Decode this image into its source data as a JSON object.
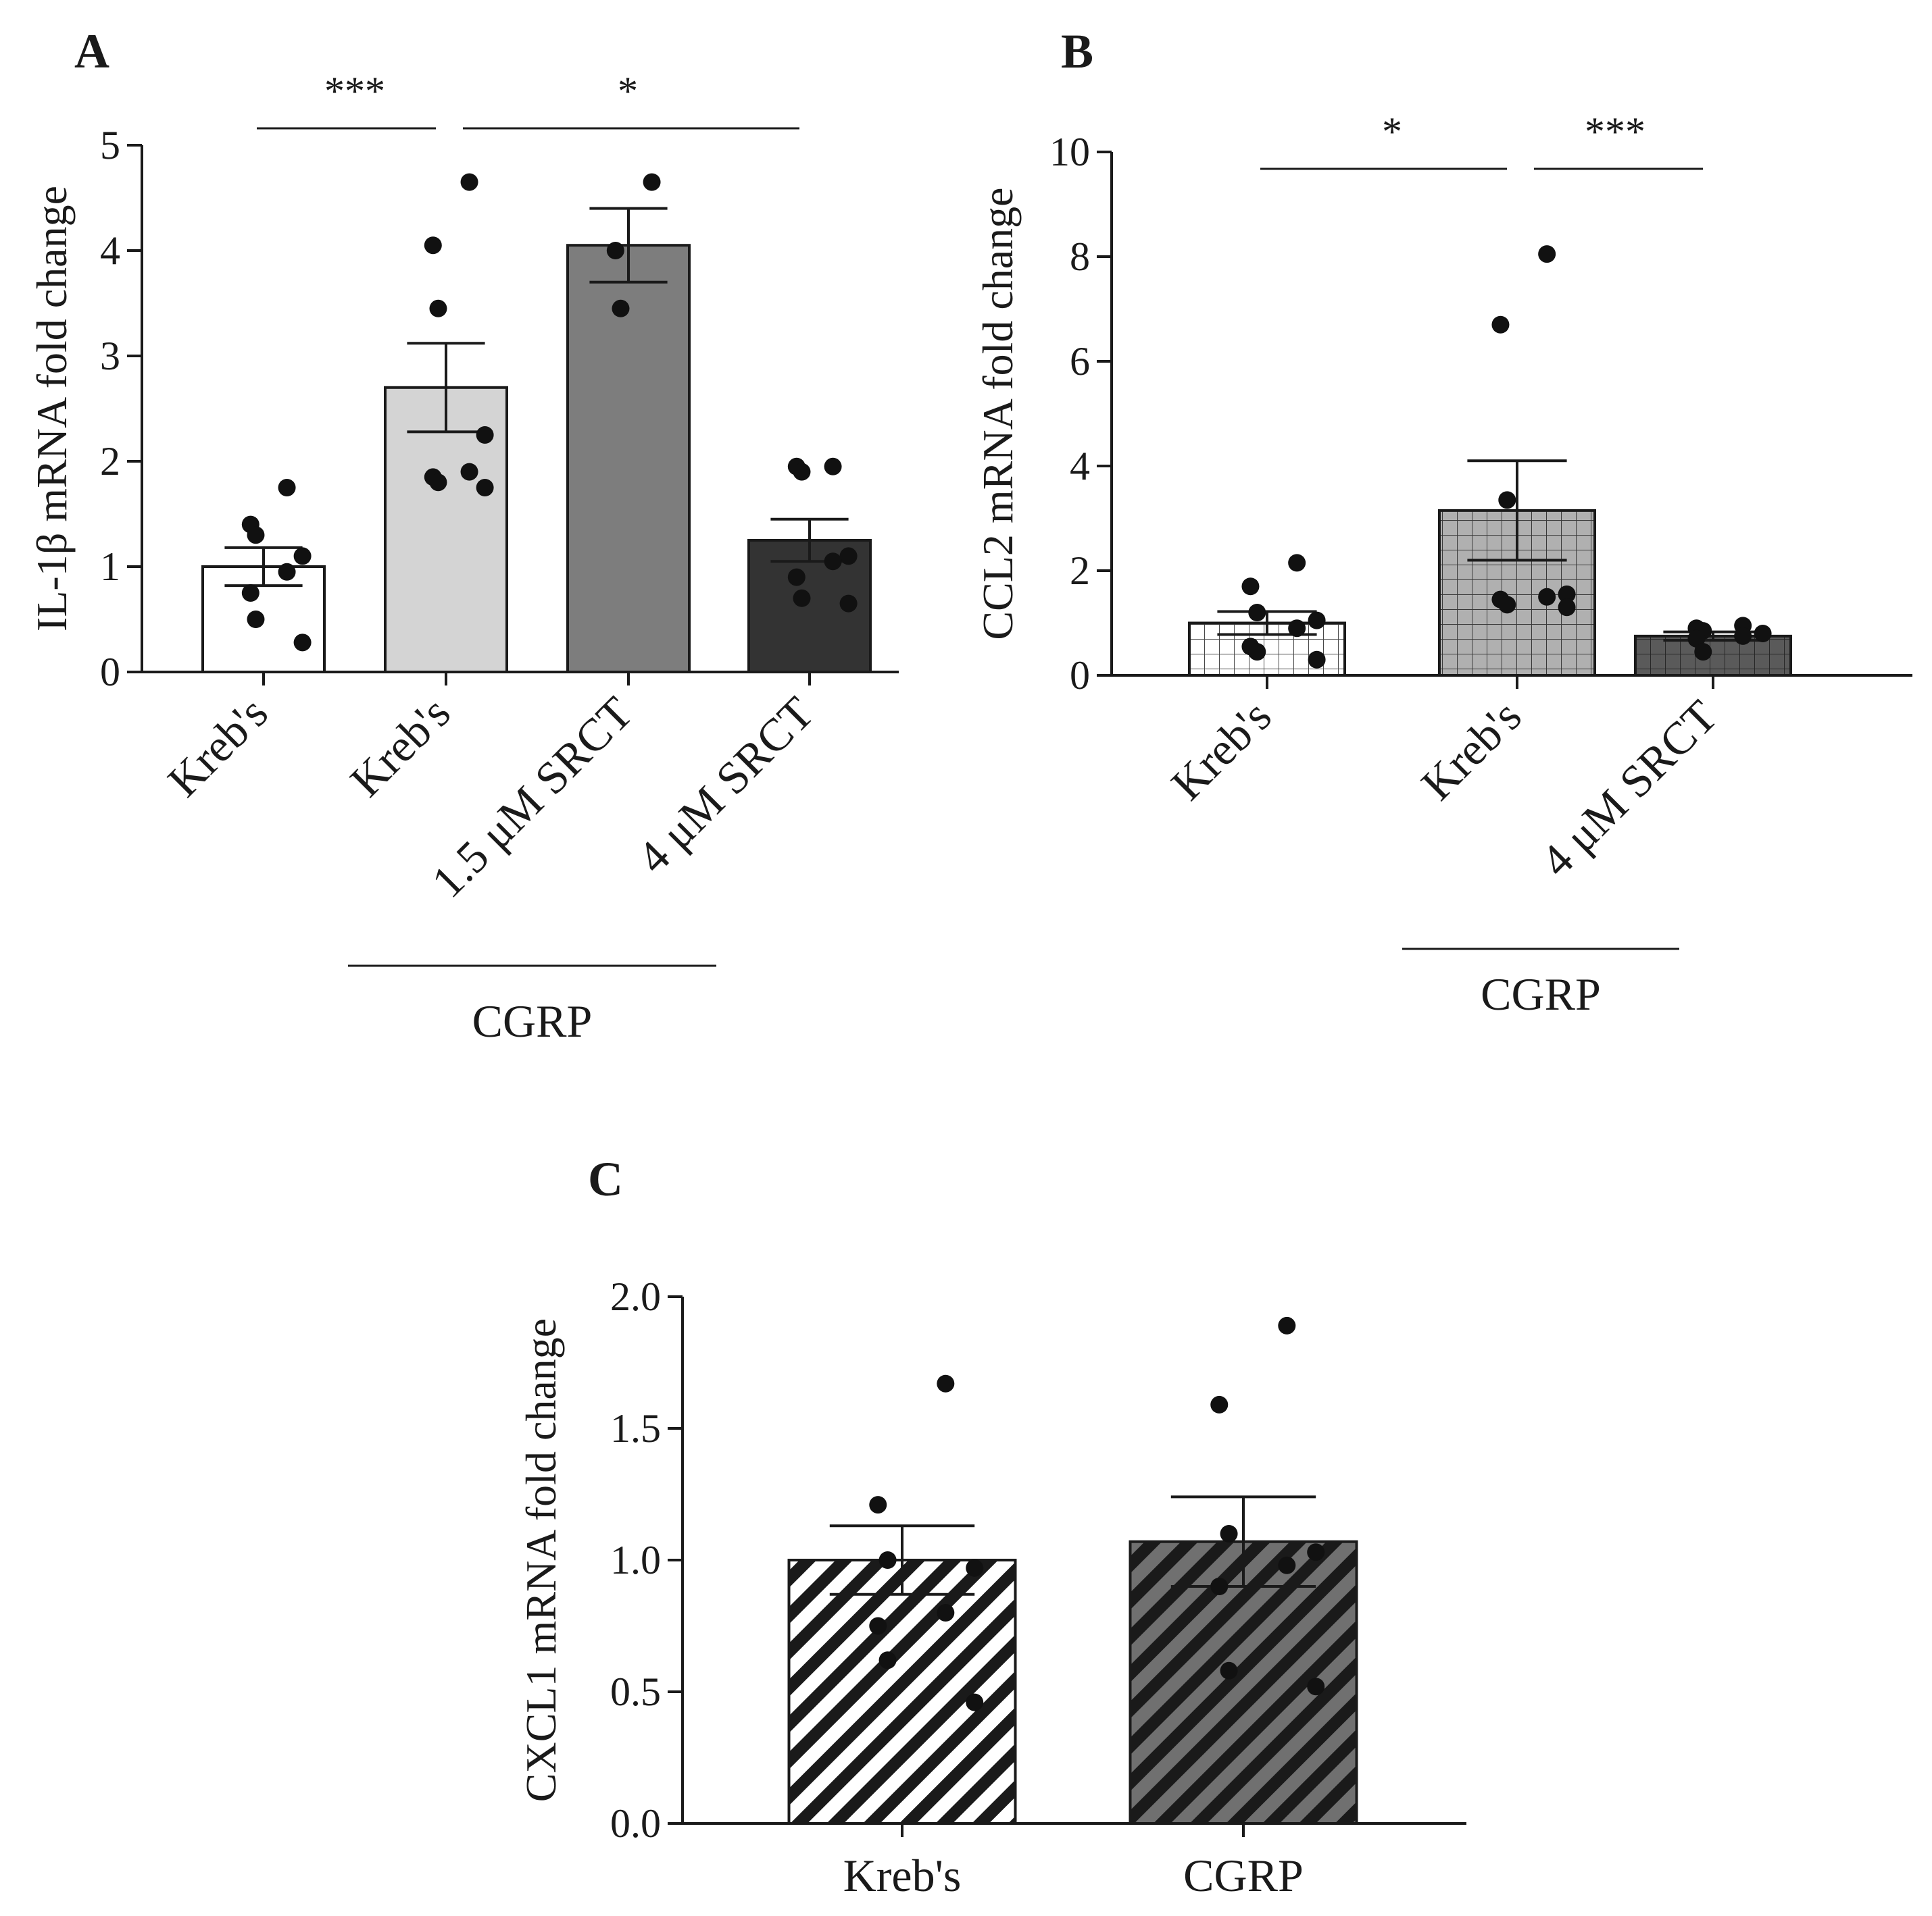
{
  "chart_data": [
    {
      "id": "A",
      "type": "bar",
      "panel_label": "A",
      "ylabel": "IL-1β mRNA fold change",
      "ylim": [
        0,
        5
      ],
      "yticks": [
        "0",
        "1",
        "2",
        "3",
        "4",
        "5"
      ],
      "categories": [
        "Kreb's",
        "Kreb's",
        "1.5 μM SRCT",
        "4 μM SRCT"
      ],
      "bar_colors": [
        "#ffffff",
        "#d4d4d4",
        "#7d7d7d",
        "#333333"
      ],
      "bar_patterns": [
        "solid",
        "solid",
        "solid",
        "solid"
      ],
      "values": [
        1.0,
        2.7,
        4.05,
        1.25
      ],
      "sem": [
        0.18,
        0.42,
        0.35,
        0.2
      ],
      "points": [
        [
          1.75,
          1.4,
          1.3,
          1.1,
          0.95,
          0.75,
          0.5,
          0.28
        ],
        [
          4.65,
          4.05,
          3.45,
          2.25,
          1.9,
          1.85,
          1.8,
          1.75
        ],
        [
          4.65,
          4.0,
          3.45
        ],
        [
          1.95,
          1.95,
          1.9,
          1.1,
          1.05,
          0.9,
          0.7,
          0.65
        ]
      ],
      "group_bracket": {
        "label": "CGRP",
        "from": 1,
        "to": 2
      },
      "significance": [
        {
          "label": "***",
          "from": 0,
          "to": 1
        },
        {
          "label": "*",
          "from": 1,
          "to": 3
        }
      ]
    },
    {
      "id": "B",
      "type": "bar",
      "panel_label": "B",
      "ylabel": "CCL2 mRNA fold change",
      "ylim": [
        0,
        10
      ],
      "yticks": [
        "0",
        "2",
        "4",
        "6",
        "8",
        "10"
      ],
      "categories": [
        "Kreb's",
        "Kreb's",
        "4 μM SRCT"
      ],
      "bar_colors": [
        "#ffffff",
        "#b0b0b0",
        "#5a5a5a"
      ],
      "bar_patterns": [
        "grid",
        "grid",
        "grid"
      ],
      "values": [
        1.0,
        3.15,
        0.75
      ],
      "sem": [
        0.22,
        0.95,
        0.08
      ],
      "points": [
        [
          2.15,
          1.7,
          1.2,
          1.05,
          0.9,
          0.55,
          0.45,
          0.3
        ],
        [
          8.05,
          6.7,
          3.35,
          1.55,
          1.5,
          1.45,
          1.35,
          1.3
        ],
        [
          0.95,
          0.9,
          0.85,
          0.8,
          0.75,
          0.7,
          0.45
        ]
      ],
      "group_bracket": {
        "label": "CGRP",
        "from": 1,
        "to": 2
      },
      "significance": [
        {
          "label": "*",
          "from": 0,
          "to": 1
        },
        {
          "label": "***",
          "from": 1,
          "to": 2
        }
      ]
    },
    {
      "id": "C",
      "type": "bar",
      "panel_label": "C",
      "ylabel": "CXCL1 mRNA fold change",
      "ylim": [
        0,
        2.0
      ],
      "yticks": [
        "0.0",
        "0.5",
        "1.0",
        "1.5",
        "2.0"
      ],
      "categories": [
        "Kreb's",
        "CGRP"
      ],
      "bar_colors": [
        "#ffffff",
        "#707070"
      ],
      "bar_patterns": [
        "diagonal",
        "diagonal"
      ],
      "values": [
        1.0,
        1.07
      ],
      "sem": [
        0.13,
        0.17
      ],
      "points": [
        [
          1.67,
          1.21,
          1.0,
          0.97,
          0.8,
          0.75,
          0.62,
          0.46
        ],
        [
          1.89,
          1.59,
          1.1,
          1.03,
          0.98,
          0.9,
          0.58,
          0.52
        ]
      ],
      "group_bracket": null,
      "significance": []
    }
  ]
}
